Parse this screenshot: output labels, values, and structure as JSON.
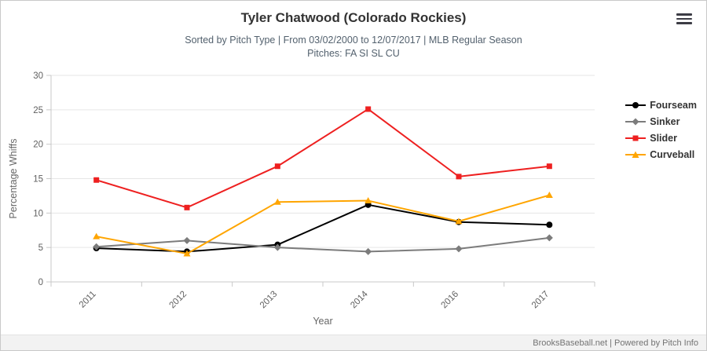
{
  "header": {
    "title": "Tyler Chatwood (Colorado Rockies)",
    "subtitle_line1": "Sorted by Pitch Type | From 03/02/2000 to 12/07/2017 | MLB Regular Season",
    "subtitle_line2": "Pitches: FA SI SL CU"
  },
  "menu": {
    "icon": "hamburger-icon"
  },
  "chart_data": {
    "type": "line",
    "categories": [
      "2011",
      "2012",
      "2013",
      "2014",
      "2016",
      "2017"
    ],
    "series": [
      {
        "name": "Fourseam",
        "color": "#000000",
        "marker": "circle",
        "values": [
          4.9,
          4.4,
          5.4,
          11.2,
          8.7,
          8.3
        ]
      },
      {
        "name": "Sinker",
        "color": "#7c7c7c",
        "marker": "diamond",
        "values": [
          5.1,
          6.0,
          5.0,
          4.4,
          4.8,
          6.4
        ]
      },
      {
        "name": "Slider",
        "color": "#ee2020",
        "marker": "square",
        "values": [
          14.8,
          10.8,
          16.8,
          25.1,
          15.3,
          16.8
        ]
      },
      {
        "name": "Curveball",
        "color": "#ffa500",
        "marker": "triangle",
        "values": [
          6.6,
          4.1,
          11.6,
          11.8,
          8.8,
          12.6
        ]
      }
    ],
    "xlabel": "Year",
    "ylabel": "Percentage Whiffs",
    "ylim": [
      0,
      30
    ],
    "yticks": [
      0,
      5,
      10,
      15,
      20,
      25,
      30
    ],
    "grid": true,
    "legend_position": "right"
  },
  "footer": {
    "credit": "BrooksBaseball.net | Powered by Pitch Info"
  },
  "colors": {
    "gridline": "#e6e6e6",
    "axis": "#c8c8c8",
    "tick_label": "#606060",
    "axis_title": "#666666"
  }
}
